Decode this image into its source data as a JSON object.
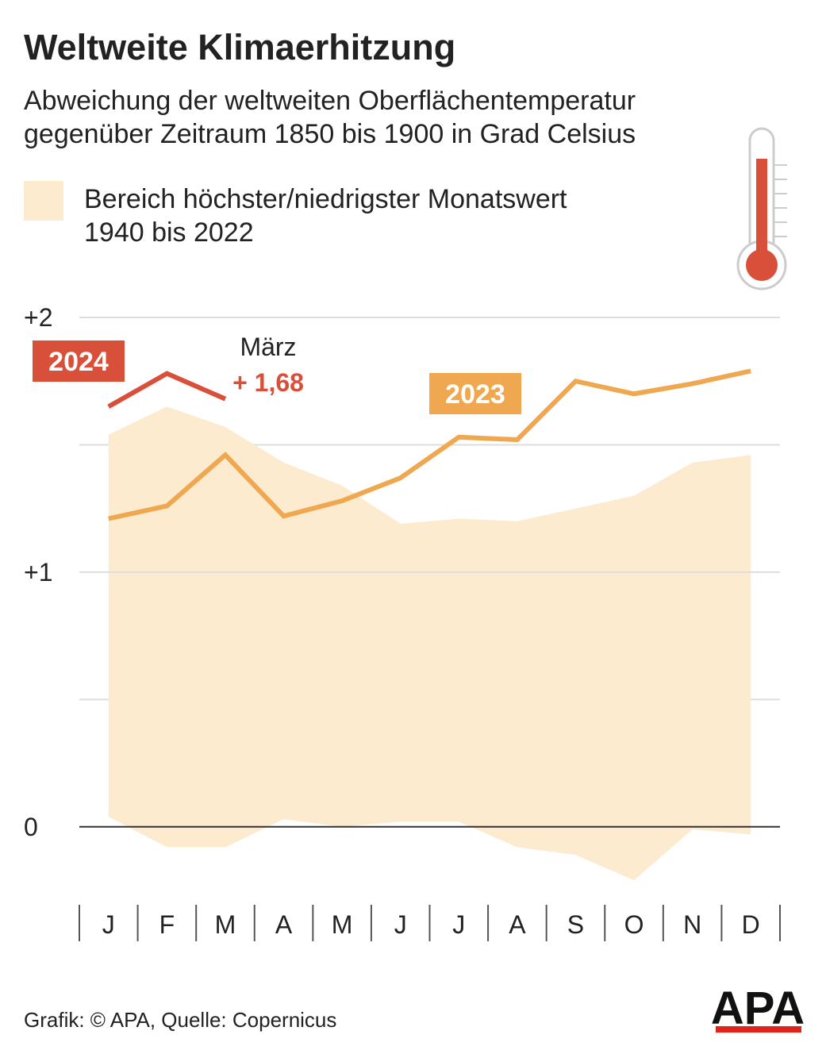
{
  "chart_data": {
    "type": "line",
    "title": "Weltweite Klimaerhitzung",
    "subtitle": "Abweichung der weltweiten Oberflächentemperatur gegenüber Zeitraum 1850 bis 1900 in Grad Celsius",
    "categories": [
      "J",
      "F",
      "M",
      "A",
      "M",
      "J",
      "J",
      "A",
      "S",
      "O",
      "N",
      "D"
    ],
    "range": {
      "name": "Bereich höchster/niedrigster Monatswert 1940 bis 2022",
      "color": "#fdebd0",
      "upper": [
        1.54,
        1.65,
        1.57,
        1.43,
        1.34,
        1.19,
        1.21,
        1.2,
        1.25,
        1.3,
        1.43,
        1.46
      ],
      "lower": [
        0.04,
        -0.08,
        -0.08,
        0.03,
        0,
        0.02,
        0.02,
        -0.08,
        -0.11,
        -0.21,
        -0.01,
        -0.03
      ]
    },
    "series": [
      {
        "name": "2023",
        "color": "#f0a850",
        "values": [
          1.21,
          1.26,
          1.46,
          1.22,
          1.28,
          1.37,
          1.53,
          1.52,
          1.75,
          1.7,
          1.74,
          1.79
        ]
      },
      {
        "name": "2024",
        "color": "#d9503a",
        "values": [
          1.65,
          1.78,
          1.68,
          null,
          null,
          null,
          null,
          null,
          null,
          null,
          null,
          null
        ],
        "value_labels": [
          null,
          null,
          "+ 1,68",
          null,
          null,
          null,
          null,
          null,
          null,
          null,
          null,
          null
        ]
      }
    ],
    "annotation": "März",
    "ylim": [
      -0.25,
      2
    ],
    "yticks": [
      0,
      {
        "value": 1,
        "label": "+1"
      },
      {
        "value": 2,
        "label": "+2"
      }
    ],
    "minor_grid": [
      0.5,
      1.5
    ],
    "grid": true,
    "source": "Grafik: © APA, Quelle: Copernicus",
    "logo": "APA"
  }
}
